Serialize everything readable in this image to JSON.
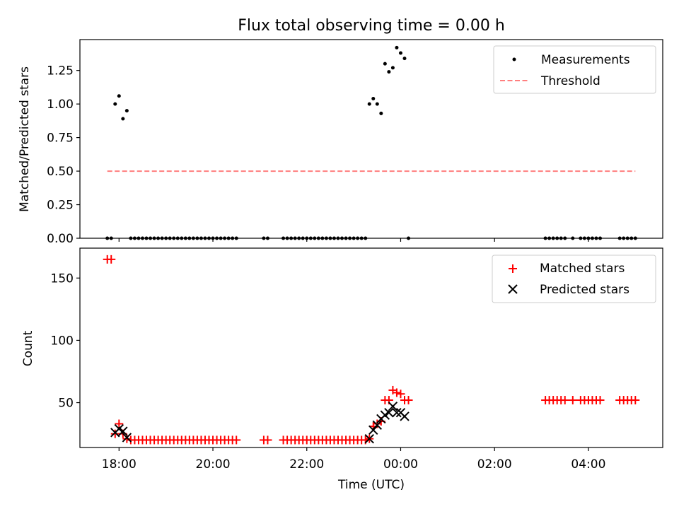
{
  "title": "Flux total observing time = 0.00 h",
  "xlabel": "Time (UTC)",
  "x_ticks": [
    "18:00",
    "20:00",
    "22:00",
    "00:00",
    "02:00",
    "04:00"
  ],
  "colors": {
    "measurements": "#000000",
    "threshold": "#ff7f7f",
    "matched": "#ff0000",
    "predicted": "#000000"
  },
  "chart_data": [
    {
      "type": "scatter",
      "ylabel": "Matched/Predicted stars",
      "xlim": [
        "17:10",
        "05:35"
      ],
      "ylim": [
        0,
        1.48
      ],
      "y_ticks": [
        0.0,
        0.25,
        0.5,
        0.75,
        1.0,
        1.25
      ],
      "legend": {
        "position": "top-right",
        "entries": [
          "Measurements",
          "Threshold"
        ]
      },
      "series": [
        {
          "name": "Measurements",
          "marker": "dot",
          "points": [
            [
              "17:45",
              0
            ],
            [
              "17:50",
              0
            ],
            [
              "17:55",
              1.0
            ],
            [
              "18:00",
              1.06
            ],
            [
              "18:05",
              0.89
            ],
            [
              "18:10",
              0.95
            ],
            [
              "18:15",
              0
            ],
            [
              "18:20",
              0
            ],
            [
              "18:25",
              0
            ],
            [
              "18:30",
              0
            ],
            [
              "18:35",
              0
            ],
            [
              "18:40",
              0
            ],
            [
              "18:45",
              0
            ],
            [
              "18:50",
              0
            ],
            [
              "18:55",
              0
            ],
            [
              "19:00",
              0
            ],
            [
              "19:05",
              0
            ],
            [
              "19:10",
              0
            ],
            [
              "19:15",
              0
            ],
            [
              "19:20",
              0
            ],
            [
              "19:25",
              0
            ],
            [
              "19:30",
              0
            ],
            [
              "19:35",
              0
            ],
            [
              "19:40",
              0
            ],
            [
              "19:45",
              0
            ],
            [
              "19:50",
              0
            ],
            [
              "19:55",
              0
            ],
            [
              "20:00",
              0
            ],
            [
              "20:05",
              0
            ],
            [
              "20:10",
              0
            ],
            [
              "20:15",
              0
            ],
            [
              "20:20",
              0
            ],
            [
              "20:25",
              0
            ],
            [
              "20:30",
              0
            ],
            [
              "21:05",
              0
            ],
            [
              "21:10",
              0
            ],
            [
              "21:30",
              0
            ],
            [
              "21:35",
              0
            ],
            [
              "21:40",
              0
            ],
            [
              "21:45",
              0
            ],
            [
              "21:50",
              0
            ],
            [
              "21:55",
              0
            ],
            [
              "22:00",
              0
            ],
            [
              "22:05",
              0
            ],
            [
              "22:10",
              0
            ],
            [
              "22:15",
              0
            ],
            [
              "22:20",
              0
            ],
            [
              "22:25",
              0
            ],
            [
              "22:30",
              0
            ],
            [
              "22:35",
              0
            ],
            [
              "22:40",
              0
            ],
            [
              "22:45",
              0
            ],
            [
              "22:50",
              0
            ],
            [
              "22:55",
              0
            ],
            [
              "23:00",
              0
            ],
            [
              "23:05",
              0
            ],
            [
              "23:10",
              0
            ],
            [
              "23:15",
              0
            ],
            [
              "23:20",
              1.0
            ],
            [
              "23:25",
              1.04
            ],
            [
              "23:30",
              1.0
            ],
            [
              "23:35",
              0.93
            ],
            [
              "23:40",
              1.3
            ],
            [
              "23:45",
              1.24
            ],
            [
              "23:50",
              1.27
            ],
            [
              "23:55",
              1.42
            ],
            [
              "00:00",
              1.38
            ],
            [
              "00:05",
              1.34
            ],
            [
              "00:10",
              0
            ],
            [
              "03:05",
              0
            ],
            [
              "03:10",
              0
            ],
            [
              "03:15",
              0
            ],
            [
              "03:20",
              0
            ],
            [
              "03:25",
              0
            ],
            [
              "03:30",
              0
            ],
            [
              "03:40",
              0
            ],
            [
              "03:50",
              0
            ],
            [
              "03:55",
              0
            ],
            [
              "04:00",
              0
            ],
            [
              "04:05",
              0
            ],
            [
              "04:10",
              0
            ],
            [
              "04:15",
              0
            ],
            [
              "04:40",
              0
            ],
            [
              "04:45",
              0
            ],
            [
              "04:50",
              0
            ],
            [
              "04:55",
              0
            ],
            [
              "05:00",
              0
            ]
          ]
        },
        {
          "name": "Threshold",
          "style": "dashed",
          "points": [
            [
              "17:45",
              0.5
            ],
            [
              "05:00",
              0.5
            ]
          ]
        }
      ]
    },
    {
      "type": "scatter",
      "ylabel": "Count",
      "xlim": [
        "17:10",
        "05:35"
      ],
      "ylim": [
        14,
        174
      ],
      "y_ticks": [
        50,
        100,
        150
      ],
      "legend": {
        "position": "top-right",
        "entries": [
          "Matched stars",
          "Predicted stars"
        ]
      },
      "series": [
        {
          "name": "Matched stars",
          "marker": "plus",
          "points": [
            [
              "17:45",
              165
            ],
            [
              "17:50",
              165
            ],
            [
              "17:55",
              25
            ],
            [
              "18:00",
              33
            ],
            [
              "18:05",
              25
            ],
            [
              "18:10",
              21
            ],
            [
              "18:15",
              20
            ],
            [
              "18:20",
              20
            ],
            [
              "18:25",
              20
            ],
            [
              "18:30",
              20
            ],
            [
              "18:35",
              20
            ],
            [
              "18:40",
              20
            ],
            [
              "18:45",
              20
            ],
            [
              "18:50",
              20
            ],
            [
              "18:55",
              20
            ],
            [
              "19:00",
              20
            ],
            [
              "19:05",
              20
            ],
            [
              "19:10",
              20
            ],
            [
              "19:15",
              20
            ],
            [
              "19:20",
              20
            ],
            [
              "19:25",
              20
            ],
            [
              "19:30",
              20
            ],
            [
              "19:35",
              20
            ],
            [
              "19:40",
              20
            ],
            [
              "19:45",
              20
            ],
            [
              "19:50",
              20
            ],
            [
              "19:55",
              20
            ],
            [
              "20:00",
              20
            ],
            [
              "20:05",
              20
            ],
            [
              "20:10",
              20
            ],
            [
              "20:15",
              20
            ],
            [
              "20:20",
              20
            ],
            [
              "20:25",
              20
            ],
            [
              "20:30",
              20
            ],
            [
              "21:05",
              20
            ],
            [
              "21:10",
              20
            ],
            [
              "21:30",
              20
            ],
            [
              "21:35",
              20
            ],
            [
              "21:40",
              20
            ],
            [
              "21:45",
              20
            ],
            [
              "21:50",
              20
            ],
            [
              "21:55",
              20
            ],
            [
              "22:00",
              20
            ],
            [
              "22:05",
              20
            ],
            [
              "22:10",
              20
            ],
            [
              "22:15",
              20
            ],
            [
              "22:20",
              20
            ],
            [
              "22:25",
              20
            ],
            [
              "22:30",
              20
            ],
            [
              "22:35",
              20
            ],
            [
              "22:40",
              20
            ],
            [
              "22:45",
              20
            ],
            [
              "22:50",
              20
            ],
            [
              "22:55",
              20
            ],
            [
              "23:00",
              20
            ],
            [
              "23:05",
              20
            ],
            [
              "23:10",
              20
            ],
            [
              "23:15",
              20
            ],
            [
              "23:20",
              21
            ],
            [
              "23:25",
              31
            ],
            [
              "23:30",
              33
            ],
            [
              "23:35",
              35
            ],
            [
              "23:40",
              52
            ],
            [
              "23:45",
              52
            ],
            [
              "23:50",
              60
            ],
            [
              "23:55",
              58
            ],
            [
              "00:00",
              57
            ],
            [
              "00:05",
              52
            ],
            [
              "00:10",
              52
            ],
            [
              "03:05",
              52
            ],
            [
              "03:10",
              52
            ],
            [
              "03:15",
              52
            ],
            [
              "03:20",
              52
            ],
            [
              "03:25",
              52
            ],
            [
              "03:30",
              52
            ],
            [
              "03:40",
              52
            ],
            [
              "03:50",
              52
            ],
            [
              "03:55",
              52
            ],
            [
              "04:00",
              52
            ],
            [
              "04:05",
              52
            ],
            [
              "04:10",
              52
            ],
            [
              "04:15",
              52
            ],
            [
              "04:40",
              52
            ],
            [
              "04:45",
              52
            ],
            [
              "04:50",
              52
            ],
            [
              "04:55",
              52
            ],
            [
              "05:00",
              52
            ]
          ]
        },
        {
          "name": "Predicted stars",
          "marker": "x",
          "points": [
            [
              "17:55",
              26
            ],
            [
              "18:00",
              29
            ],
            [
              "18:05",
              27
            ],
            [
              "18:10",
              22
            ],
            [
              "23:20",
              21
            ],
            [
              "23:25",
              28
            ],
            [
              "23:30",
              32
            ],
            [
              "23:35",
              37
            ],
            [
              "23:40",
              40
            ],
            [
              "23:45",
              42
            ],
            [
              "23:50",
              47
            ],
            [
              "23:55",
              42
            ],
            [
              "00:00",
              42
            ],
            [
              "00:05",
              39
            ]
          ]
        }
      ]
    }
  ]
}
